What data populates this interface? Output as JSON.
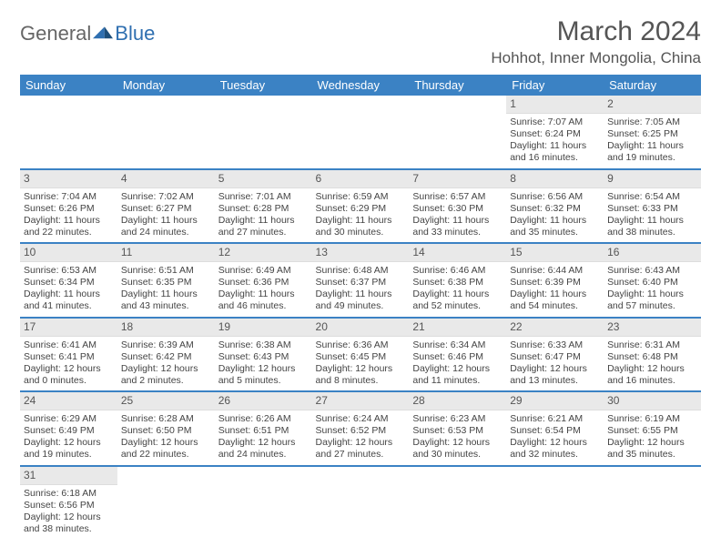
{
  "logo": {
    "part1": "General",
    "part2": "Blue"
  },
  "title": "March 2024",
  "subtitle": "Hohhot, Inner Mongolia, China",
  "colors": {
    "header_bg": "#3b82c4",
    "header_text": "#ffffff",
    "daynum_bg": "#e9e9e9",
    "week_border": "#3b82c4",
    "text": "#444444"
  },
  "day_headers": [
    "Sunday",
    "Monday",
    "Tuesday",
    "Wednesday",
    "Thursday",
    "Friday",
    "Saturday"
  ],
  "weeks": [
    [
      null,
      null,
      null,
      null,
      null,
      {
        "n": "1",
        "sr": "Sunrise: 7:07 AM",
        "ss": "Sunset: 6:24 PM",
        "d1": "Daylight: 11 hours",
        "d2": "and 16 minutes."
      },
      {
        "n": "2",
        "sr": "Sunrise: 7:05 AM",
        "ss": "Sunset: 6:25 PM",
        "d1": "Daylight: 11 hours",
        "d2": "and 19 minutes."
      }
    ],
    [
      {
        "n": "3",
        "sr": "Sunrise: 7:04 AM",
        "ss": "Sunset: 6:26 PM",
        "d1": "Daylight: 11 hours",
        "d2": "and 22 minutes."
      },
      {
        "n": "4",
        "sr": "Sunrise: 7:02 AM",
        "ss": "Sunset: 6:27 PM",
        "d1": "Daylight: 11 hours",
        "d2": "and 24 minutes."
      },
      {
        "n": "5",
        "sr": "Sunrise: 7:01 AM",
        "ss": "Sunset: 6:28 PM",
        "d1": "Daylight: 11 hours",
        "d2": "and 27 minutes."
      },
      {
        "n": "6",
        "sr": "Sunrise: 6:59 AM",
        "ss": "Sunset: 6:29 PM",
        "d1": "Daylight: 11 hours",
        "d2": "and 30 minutes."
      },
      {
        "n": "7",
        "sr": "Sunrise: 6:57 AM",
        "ss": "Sunset: 6:30 PM",
        "d1": "Daylight: 11 hours",
        "d2": "and 33 minutes."
      },
      {
        "n": "8",
        "sr": "Sunrise: 6:56 AM",
        "ss": "Sunset: 6:32 PM",
        "d1": "Daylight: 11 hours",
        "d2": "and 35 minutes."
      },
      {
        "n": "9",
        "sr": "Sunrise: 6:54 AM",
        "ss": "Sunset: 6:33 PM",
        "d1": "Daylight: 11 hours",
        "d2": "and 38 minutes."
      }
    ],
    [
      {
        "n": "10",
        "sr": "Sunrise: 6:53 AM",
        "ss": "Sunset: 6:34 PM",
        "d1": "Daylight: 11 hours",
        "d2": "and 41 minutes."
      },
      {
        "n": "11",
        "sr": "Sunrise: 6:51 AM",
        "ss": "Sunset: 6:35 PM",
        "d1": "Daylight: 11 hours",
        "d2": "and 43 minutes."
      },
      {
        "n": "12",
        "sr": "Sunrise: 6:49 AM",
        "ss": "Sunset: 6:36 PM",
        "d1": "Daylight: 11 hours",
        "d2": "and 46 minutes."
      },
      {
        "n": "13",
        "sr": "Sunrise: 6:48 AM",
        "ss": "Sunset: 6:37 PM",
        "d1": "Daylight: 11 hours",
        "d2": "and 49 minutes."
      },
      {
        "n": "14",
        "sr": "Sunrise: 6:46 AM",
        "ss": "Sunset: 6:38 PM",
        "d1": "Daylight: 11 hours",
        "d2": "and 52 minutes."
      },
      {
        "n": "15",
        "sr": "Sunrise: 6:44 AM",
        "ss": "Sunset: 6:39 PM",
        "d1": "Daylight: 11 hours",
        "d2": "and 54 minutes."
      },
      {
        "n": "16",
        "sr": "Sunrise: 6:43 AM",
        "ss": "Sunset: 6:40 PM",
        "d1": "Daylight: 11 hours",
        "d2": "and 57 minutes."
      }
    ],
    [
      {
        "n": "17",
        "sr": "Sunrise: 6:41 AM",
        "ss": "Sunset: 6:41 PM",
        "d1": "Daylight: 12 hours",
        "d2": "and 0 minutes."
      },
      {
        "n": "18",
        "sr": "Sunrise: 6:39 AM",
        "ss": "Sunset: 6:42 PM",
        "d1": "Daylight: 12 hours",
        "d2": "and 2 minutes."
      },
      {
        "n": "19",
        "sr": "Sunrise: 6:38 AM",
        "ss": "Sunset: 6:43 PM",
        "d1": "Daylight: 12 hours",
        "d2": "and 5 minutes."
      },
      {
        "n": "20",
        "sr": "Sunrise: 6:36 AM",
        "ss": "Sunset: 6:45 PM",
        "d1": "Daylight: 12 hours",
        "d2": "and 8 minutes."
      },
      {
        "n": "21",
        "sr": "Sunrise: 6:34 AM",
        "ss": "Sunset: 6:46 PM",
        "d1": "Daylight: 12 hours",
        "d2": "and 11 minutes."
      },
      {
        "n": "22",
        "sr": "Sunrise: 6:33 AM",
        "ss": "Sunset: 6:47 PM",
        "d1": "Daylight: 12 hours",
        "d2": "and 13 minutes."
      },
      {
        "n": "23",
        "sr": "Sunrise: 6:31 AM",
        "ss": "Sunset: 6:48 PM",
        "d1": "Daylight: 12 hours",
        "d2": "and 16 minutes."
      }
    ],
    [
      {
        "n": "24",
        "sr": "Sunrise: 6:29 AM",
        "ss": "Sunset: 6:49 PM",
        "d1": "Daylight: 12 hours",
        "d2": "and 19 minutes."
      },
      {
        "n": "25",
        "sr": "Sunrise: 6:28 AM",
        "ss": "Sunset: 6:50 PM",
        "d1": "Daylight: 12 hours",
        "d2": "and 22 minutes."
      },
      {
        "n": "26",
        "sr": "Sunrise: 6:26 AM",
        "ss": "Sunset: 6:51 PM",
        "d1": "Daylight: 12 hours",
        "d2": "and 24 minutes."
      },
      {
        "n": "27",
        "sr": "Sunrise: 6:24 AM",
        "ss": "Sunset: 6:52 PM",
        "d1": "Daylight: 12 hours",
        "d2": "and 27 minutes."
      },
      {
        "n": "28",
        "sr": "Sunrise: 6:23 AM",
        "ss": "Sunset: 6:53 PM",
        "d1": "Daylight: 12 hours",
        "d2": "and 30 minutes."
      },
      {
        "n": "29",
        "sr": "Sunrise: 6:21 AM",
        "ss": "Sunset: 6:54 PM",
        "d1": "Daylight: 12 hours",
        "d2": "and 32 minutes."
      },
      {
        "n": "30",
        "sr": "Sunrise: 6:19 AM",
        "ss": "Sunset: 6:55 PM",
        "d1": "Daylight: 12 hours",
        "d2": "and 35 minutes."
      }
    ],
    [
      {
        "n": "31",
        "sr": "Sunrise: 6:18 AM",
        "ss": "Sunset: 6:56 PM",
        "d1": "Daylight: 12 hours",
        "d2": "and 38 minutes."
      },
      null,
      null,
      null,
      null,
      null,
      null
    ]
  ]
}
